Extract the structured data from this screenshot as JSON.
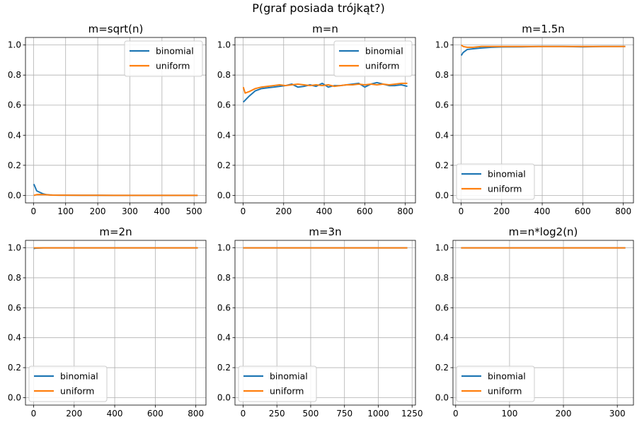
{
  "figure": {
    "suptitle": "P(graf posiada trójkąt?)"
  },
  "colors": {
    "binomial": "#1f77b4",
    "uniform": "#ff7f0e",
    "grid": "#b0b0b0",
    "axes": "#000000"
  },
  "chart_data": [
    {
      "type": "line",
      "title": "m=sqrt(n)",
      "xlabel": "",
      "ylabel": "",
      "xlim": [
        -25,
        537
      ],
      "ylim": [
        -0.05,
        1.05
      ],
      "xticks": [
        0,
        100,
        200,
        300,
        400,
        500
      ],
      "yticks": [
        0.0,
        0.2,
        0.4,
        0.6,
        0.8,
        1.0
      ],
      "grid": true,
      "legend": "upper right",
      "series": [
        {
          "name": "binomial",
          "x": [
            1,
            10,
            20,
            30,
            40,
            50,
            60,
            80,
            100,
            150,
            200,
            250,
            300,
            350,
            400,
            450,
            500,
            511
          ],
          "y": [
            0.075,
            0.03,
            0.02,
            0.01,
            0.005,
            0.003,
            0.002,
            0.001,
            0.001,
            0.0005,
            0.0003,
            0.0002,
            0.0001,
            0.0001,
            0.0,
            0.0,
            0.0,
            0.0
          ]
        },
        {
          "name": "uniform",
          "x": [
            1,
            10,
            20,
            30,
            40,
            50,
            60,
            80,
            100,
            150,
            200,
            250,
            300,
            350,
            400,
            450,
            500,
            511
          ],
          "y": [
            0.0,
            0.005,
            0.006,
            0.005,
            0.004,
            0.003,
            0.002,
            0.001,
            0.001,
            0.0005,
            0.0003,
            0.0002,
            0.0001,
            0.0001,
            0.0,
            0.0,
            0.0,
            0.0
          ]
        }
      ]
    },
    {
      "type": "line",
      "title": "m=n",
      "xlabel": "",
      "ylabel": "",
      "xlim": [
        -40,
        850
      ],
      "ylim": [
        -0.05,
        1.05
      ],
      "xticks": [
        0,
        200,
        400,
        600,
        800
      ],
      "yticks": [
        0.0,
        0.2,
        0.4,
        0.6,
        0.8,
        1.0
      ],
      "grid": true,
      "legend": "upper right",
      "series": [
        {
          "name": "binomial",
          "x": [
            1,
            30,
            60,
            90,
            120,
            150,
            180,
            210,
            240,
            270,
            300,
            330,
            360,
            390,
            420,
            450,
            480,
            510,
            540,
            570,
            600,
            630,
            660,
            690,
            720,
            750,
            780,
            810
          ],
          "y": [
            0.62,
            0.66,
            0.695,
            0.71,
            0.715,
            0.72,
            0.725,
            0.73,
            0.74,
            0.72,
            0.725,
            0.735,
            0.725,
            0.745,
            0.72,
            0.73,
            0.73,
            0.735,
            0.74,
            0.745,
            0.72,
            0.74,
            0.75,
            0.74,
            0.73,
            0.73,
            0.735,
            0.725
          ]
        },
        {
          "name": "uniform",
          "x": [
            1,
            10,
            30,
            60,
            90,
            120,
            150,
            180,
            210,
            240,
            270,
            300,
            330,
            360,
            390,
            420,
            450,
            480,
            510,
            540,
            570,
            600,
            630,
            660,
            690,
            720,
            750,
            780,
            810
          ],
          "y": [
            0.72,
            0.68,
            0.69,
            0.71,
            0.72,
            0.725,
            0.73,
            0.735,
            0.73,
            0.735,
            0.74,
            0.735,
            0.73,
            0.735,
            0.73,
            0.735,
            0.725,
            0.73,
            0.735,
            0.735,
            0.74,
            0.735,
            0.74,
            0.735,
            0.74,
            0.735,
            0.74,
            0.745,
            0.745
          ]
        }
      ]
    },
    {
      "type": "line",
      "title": "m=1.5n",
      "xlabel": "",
      "ylabel": "",
      "xlim": [
        -40,
        850
      ],
      "ylim": [
        -0.05,
        1.05
      ],
      "xticks": [
        0,
        200,
        400,
        600,
        800
      ],
      "yticks": [
        0.0,
        0.2,
        0.4,
        0.6,
        0.8,
        1.0
      ],
      "grid": true,
      "legend": "lower left",
      "series": [
        {
          "name": "binomial",
          "x": [
            1,
            10,
            30,
            60,
            100,
            150,
            200,
            300,
            400,
            500,
            600,
            700,
            810
          ],
          "y": [
            0.93,
            0.95,
            0.97,
            0.975,
            0.98,
            0.985,
            0.987,
            0.988,
            0.99,
            0.99,
            0.988,
            0.99,
            0.99
          ]
        },
        {
          "name": "uniform",
          "x": [
            1,
            10,
            30,
            60,
            100,
            150,
            200,
            300,
            400,
            500,
            600,
            700,
            810
          ],
          "y": [
            1.0,
            0.99,
            0.985,
            0.985,
            0.99,
            0.99,
            0.99,
            0.99,
            0.99,
            0.99,
            0.99,
            0.99,
            0.99
          ]
        }
      ]
    },
    {
      "type": "line",
      "title": "m=2n",
      "xlabel": "",
      "ylabel": "",
      "xlim": [
        -40,
        850
      ],
      "ylim": [
        -0.05,
        1.05
      ],
      "xticks": [
        0,
        200,
        400,
        600,
        800
      ],
      "yticks": [
        0.0,
        0.2,
        0.4,
        0.6,
        0.8,
        1.0
      ],
      "grid": true,
      "legend": "lower left",
      "series": [
        {
          "name": "binomial",
          "x": [
            1,
            10,
            50,
            100,
            200,
            400,
            600,
            810
          ],
          "y": [
            0.995,
            0.998,
            1.0,
            1.0,
            1.0,
            1.0,
            1.0,
            1.0
          ]
        },
        {
          "name": "uniform",
          "x": [
            1,
            10,
            50,
            100,
            200,
            400,
            600,
            810
          ],
          "y": [
            1.0,
            1.0,
            1.0,
            1.0,
            1.0,
            1.0,
            1.0,
            1.0
          ]
        }
      ]
    },
    {
      "type": "line",
      "title": "m=3n",
      "xlabel": "",
      "ylabel": "",
      "xlim": [
        -60,
        1275
      ],
      "ylim": [
        -0.05,
        1.05
      ],
      "xticks": [
        0,
        250,
        500,
        750,
        1000,
        1250
      ],
      "yticks": [
        0.0,
        0.2,
        0.4,
        0.6,
        0.8,
        1.0
      ],
      "grid": true,
      "legend": "lower left",
      "series": [
        {
          "name": "binomial",
          "x": [
            1,
            100,
            300,
            600,
            900,
            1215
          ],
          "y": [
            1.0,
            1.0,
            1.0,
            1.0,
            1.0,
            1.0
          ]
        },
        {
          "name": "uniform",
          "x": [
            1,
            100,
            300,
            600,
            900,
            1215
          ],
          "y": [
            1.0,
            1.0,
            1.0,
            1.0,
            1.0,
            1.0
          ]
        }
      ]
    },
    {
      "type": "line",
      "title": "m=n*log2(n)",
      "xlabel": "",
      "ylabel": "",
      "xlim": [
        -5,
        330
      ],
      "ylim": [
        -0.05,
        1.05
      ],
      "xticks": [
        0,
        100,
        200,
        300
      ],
      "yticks": [
        0.0,
        0.2,
        0.4,
        0.6,
        0.8,
        1.0
      ],
      "grid": true,
      "legend": "lower left",
      "series": [
        {
          "name": "binomial",
          "x": [
            10,
            50,
            100,
            150,
            200,
            250,
            315
          ],
          "y": [
            1.0,
            1.0,
            1.0,
            1.0,
            1.0,
            1.0,
            1.0
          ]
        },
        {
          "name": "uniform",
          "x": [
            10,
            50,
            100,
            150,
            200,
            250,
            315
          ],
          "y": [
            1.0,
            1.0,
            1.0,
            1.0,
            1.0,
            1.0,
            1.0
          ]
        }
      ]
    }
  ]
}
